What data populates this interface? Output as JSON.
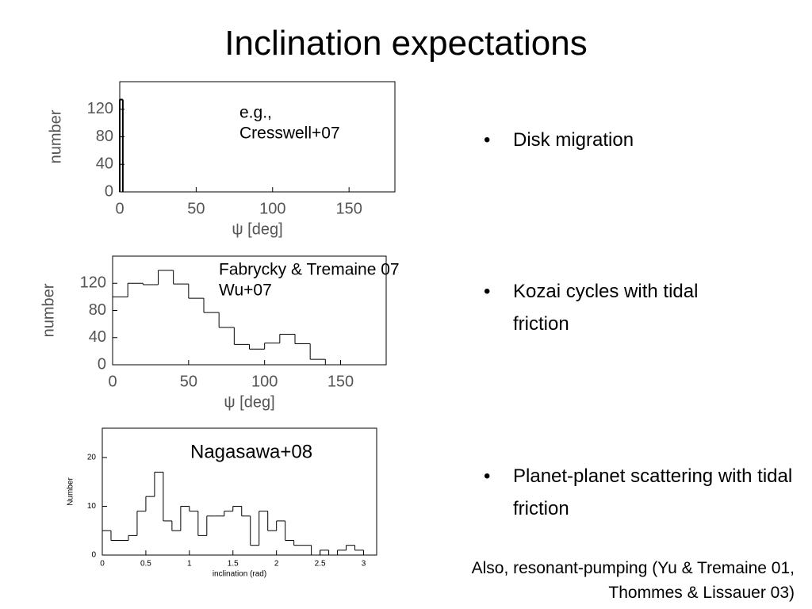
{
  "slide": {
    "title": "Inclination expectations",
    "bullets": [
      "Disk migration",
      "Kozai cycles with tidal friction",
      "Planet-planet scattering with tidal friction"
    ],
    "note": [
      "Also, resonant-pumping (Yu & Tremaine 01,",
      "Thommes & Lissauer 03)"
    ]
  },
  "chart_data": [
    {
      "type": "histogram",
      "xlabel": "ψ [deg]",
      "ylabel": "number",
      "annotation": [
        "e.g.,",
        "Cresswell+07"
      ],
      "bins": [
        0,
        2
      ],
      "counts": [
        134
      ],
      "color": "#000000",
      "xlim": [
        0,
        180
      ],
      "xticks": [
        0,
        50,
        100,
        150
      ],
      "ylim": [
        0,
        160
      ],
      "yticks": [
        0,
        40,
        80,
        120
      ]
    },
    {
      "type": "histogram",
      "xlabel": "ψ [deg]",
      "ylabel": "number",
      "annotation": [
        "Fabrycky & Tremaine 07",
        "Wu+07"
      ],
      "bins": [
        0,
        10,
        20,
        30,
        40,
        50,
        60,
        70,
        80,
        90,
        100,
        110,
        120,
        130,
        140
      ],
      "counts": [
        100,
        120,
        118,
        139,
        119,
        98,
        77,
        55,
        30,
        23,
        32,
        45,
        31,
        8
      ],
      "color": "#000000",
      "xlim": [
        0,
        180
      ],
      "xticks": [
        0,
        50,
        100,
        150
      ],
      "ylim": [
        0,
        160
      ],
      "yticks": [
        0,
        40,
        80,
        120
      ]
    },
    {
      "type": "histogram",
      "xlabel": "inclination (rad)",
      "ylabel": "Number",
      "annotation": [
        "Nagasawa+08"
      ],
      "bins": [
        0,
        0.1,
        0.2,
        0.3,
        0.4,
        0.5,
        0.6,
        0.7,
        0.8,
        0.9,
        1.0,
        1.1,
        1.2,
        1.3,
        1.4,
        1.5,
        1.6,
        1.7,
        1.8,
        1.9,
        2.0,
        2.1,
        2.2,
        2.3,
        2.4,
        2.5,
        2.6,
        2.7,
        2.8,
        2.9,
        3.0
      ],
      "counts": [
        5,
        3,
        3,
        4,
        9,
        12,
        17,
        7,
        5,
        10,
        9,
        4,
        8,
        8,
        9,
        10,
        8,
        2,
        9,
        5,
        7,
        3,
        2,
        2,
        0,
        1,
        0,
        1,
        2,
        1
      ],
      "color": "#000000",
      "xlim": [
        0,
        3.15
      ],
      "xticks": [
        0,
        0.5,
        1,
        1.5,
        2,
        2.5,
        3
      ],
      "ylim": [
        0,
        26
      ],
      "yticks": [
        0,
        10,
        20
      ]
    }
  ]
}
